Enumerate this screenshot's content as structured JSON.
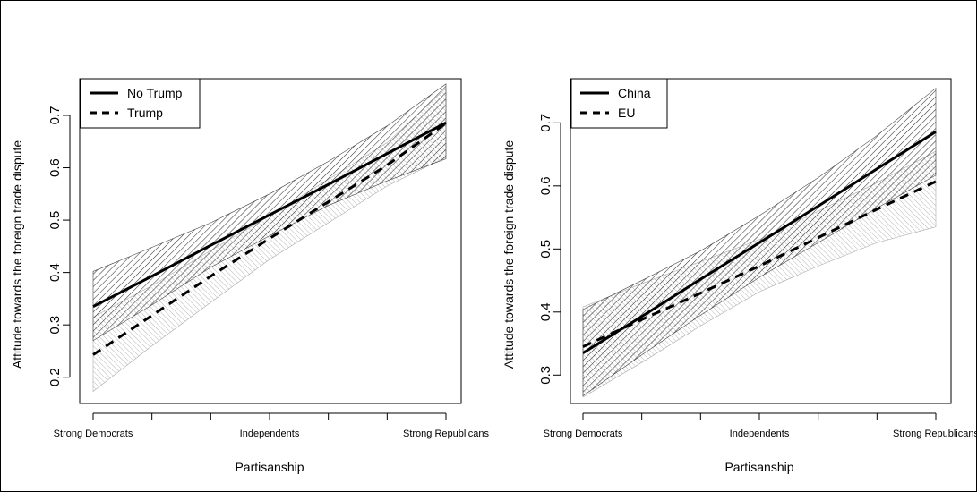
{
  "chart_data": [
    {
      "type": "line",
      "xlabel": "Partisanship",
      "ylabel": "Attitude towards the foreign trade dispute",
      "categories": [
        "Strong Democrats",
        "Independents",
        "Strong Republicans"
      ],
      "x": [
        1,
        2,
        3,
        4,
        5,
        6,
        7
      ],
      "yticks": [
        0.2,
        0.3,
        0.4,
        0.5,
        0.6,
        0.7
      ],
      "ylim": [
        0.15,
        0.77
      ],
      "legend_position": "top-left",
      "series": [
        {
          "name": "No Trump",
          "line_style": "solid",
          "band_shade": "dark",
          "values": [
            0.335,
            0.393,
            0.452,
            0.51,
            0.568,
            0.627,
            0.686
          ],
          "lower": [
            0.27,
            0.338,
            0.41,
            0.47,
            0.528,
            0.575,
            0.617
          ],
          "upper": [
            0.402,
            0.448,
            0.495,
            0.55,
            0.612,
            0.68,
            0.76
          ]
        },
        {
          "name": "Trump",
          "line_style": "dashed",
          "band_shade": "light",
          "values": [
            0.243,
            0.318,
            0.393,
            0.465,
            0.535,
            0.605,
            0.685
          ],
          "lower": [
            0.173,
            0.26,
            0.343,
            0.425,
            0.495,
            0.565,
            0.62
          ],
          "upper": [
            0.315,
            0.375,
            0.442,
            0.508,
            0.578,
            0.648,
            0.752
          ]
        }
      ]
    },
    {
      "type": "line",
      "xlabel": "Partisanship",
      "ylabel": "Attitude towards the foreign trade dispute",
      "categories": [
        "Strong Democrats",
        "Independents",
        "Strong Republicans"
      ],
      "x": [
        1,
        2,
        3,
        4,
        5,
        6,
        7
      ],
      "yticks": [
        0.3,
        0.4,
        0.5,
        0.6,
        0.7
      ],
      "ylim": [
        0.255,
        0.77
      ],
      "legend_position": "top-left",
      "series": [
        {
          "name": "China",
          "line_style": "solid",
          "band_shade": "dark",
          "values": [
            0.335,
            0.393,
            0.452,
            0.51,
            0.568,
            0.627,
            0.686
          ],
          "lower": [
            0.267,
            0.332,
            0.395,
            0.455,
            0.51,
            0.565,
            0.617
          ],
          "upper": [
            0.404,
            0.45,
            0.497,
            0.553,
            0.613,
            0.68,
            0.755
          ]
        },
        {
          "name": "EU",
          "line_style": "dashed",
          "band_shade": "light",
          "values": [
            0.345,
            0.388,
            0.43,
            0.473,
            0.518,
            0.563,
            0.607
          ],
          "lower": [
            0.265,
            0.32,
            0.378,
            0.432,
            0.473,
            0.51,
            0.535
          ],
          "upper": [
            0.408,
            0.445,
            0.48,
            0.515,
            0.56,
            0.605,
            0.655
          ]
        }
      ]
    }
  ]
}
